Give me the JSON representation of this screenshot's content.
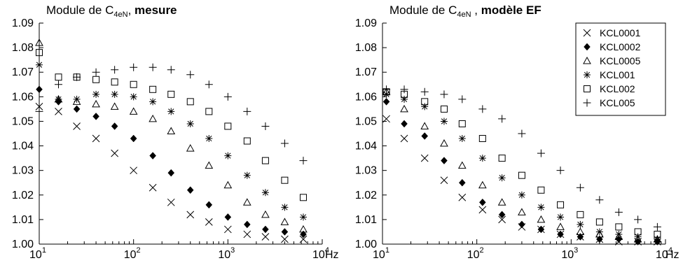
{
  "chart_data": [
    {
      "type": "scatter",
      "title_prefix": "Module de C",
      "title_sub": "4eN",
      "title_sep": ", ",
      "title_bold": "mesure",
      "xlabel": "Hz",
      "ylabel": "",
      "x_scale": "log",
      "xlim": [
        10,
        10000
      ],
      "ylim": [
        1.0,
        1.09
      ],
      "x_ticks": [
        10,
        100,
        1000,
        10000
      ],
      "x_tick_labels": [
        {
          "base": "10",
          "exp": "1"
        },
        {
          "base": "10",
          "exp": "2"
        },
        {
          "base": "10",
          "exp": "3"
        },
        {
          "base": "10",
          "exp": "4"
        }
      ],
      "y_ticks": [
        1.0,
        1.01,
        1.02,
        1.03,
        1.04,
        1.05,
        1.06,
        1.07,
        1.08,
        1.09
      ],
      "y_tick_labels": [
        "1.00",
        "1.01",
        "1.02",
        "1.03",
        "1.04",
        "1.05",
        "1.06",
        "1.07",
        "1.08",
        "1.09"
      ],
      "grid": false,
      "legend": null,
      "series": [
        {
          "name": "KCL0001",
          "marker": "x",
          "x": [
            10,
            16,
            25,
            40,
            63,
            100,
            160,
            250,
            400,
            630,
            1000,
            1600,
            2500,
            4000,
            6300
          ],
          "y": [
            1.056,
            1.054,
            1.048,
            1.043,
            1.037,
            1.03,
            1.023,
            1.017,
            1.012,
            1.009,
            1.006,
            1.004,
            1.003,
            1.002,
            1.002
          ]
        },
        {
          "name": "KCL0002",
          "marker": "diamond",
          "x": [
            10,
            16,
            25,
            40,
            63,
            100,
            160,
            250,
            400,
            630,
            1000,
            1600,
            2500,
            4000,
            6300
          ],
          "y": [
            1.063,
            1.058,
            1.055,
            1.052,
            1.048,
            1.043,
            1.036,
            1.029,
            1.022,
            1.016,
            1.011,
            1.008,
            1.006,
            1.005,
            1.004
          ]
        },
        {
          "name": "KCL0005",
          "marker": "triangle",
          "x": [
            10,
            16,
            25,
            40,
            63,
            100,
            160,
            250,
            400,
            630,
            1000,
            1600,
            2500,
            4000,
            6300
          ],
          "y": [
            1.082,
            1.059,
            1.058,
            1.057,
            1.056,
            1.054,
            1.051,
            1.046,
            1.039,
            1.032,
            1.024,
            1.017,
            1.012,
            1.009,
            1.006
          ]
        },
        {
          "name": "KCL001",
          "marker": "star",
          "x": [
            10,
            16,
            25,
            40,
            63,
            100,
            160,
            250,
            400,
            630,
            1000,
            1600,
            2500,
            4000,
            6300
          ],
          "y": [
            1.073,
            1.059,
            1.059,
            1.061,
            1.061,
            1.06,
            1.058,
            1.054,
            1.049,
            1.043,
            1.036,
            1.028,
            1.021,
            1.015,
            1.011
          ]
        },
        {
          "name": "KCL002",
          "marker": "square",
          "x": [
            10,
            16,
            25,
            40,
            63,
            100,
            160,
            250,
            400,
            630,
            1000,
            1600,
            2500,
            4000,
            6300
          ],
          "y": [
            1.078,
            1.068,
            1.068,
            1.067,
            1.066,
            1.065,
            1.063,
            1.061,
            1.058,
            1.054,
            1.048,
            1.042,
            1.034,
            1.026,
            1.019
          ]
        },
        {
          "name": "KCL005",
          "marker": "plus",
          "x": [
            10,
            16,
            25,
            40,
            63,
            100,
            160,
            250,
            400,
            630,
            1000,
            1600,
            2500,
            4000,
            6300
          ],
          "y": [
            1.054,
            1.065,
            1.068,
            1.07,
            1.071,
            1.072,
            1.072,
            1.071,
            1.069,
            1.065,
            1.06,
            1.054,
            1.048,
            1.041,
            1.034
          ]
        }
      ]
    },
    {
      "type": "scatter",
      "title_prefix": "Module de C",
      "title_sub": "4eN",
      "title_sep": " , ",
      "title_bold": "modèle EF",
      "xlabel": "Hz",
      "ylabel": "",
      "x_scale": "log",
      "xlim": [
        10,
        10000
      ],
      "ylim": [
        1.0,
        1.09
      ],
      "x_ticks": [
        10,
        100,
        1000,
        10000
      ],
      "x_tick_labels": [
        {
          "base": "10",
          "exp": "1"
        },
        {
          "base": "10",
          "exp": "2"
        },
        {
          "base": "10",
          "exp": "3"
        },
        {
          "base": "10",
          "exp": "4"
        }
      ],
      "y_ticks": [
        1.0,
        1.01,
        1.02,
        1.03,
        1.04,
        1.05,
        1.06,
        1.07,
        1.08,
        1.09
      ],
      "y_tick_labels": [
        "1.00",
        "1.01",
        "1.02",
        "1.03",
        "1.04",
        "1.05",
        "1.06",
        "1.07",
        "1.08",
        "1.09"
      ],
      "grid": false,
      "legend": "top-right",
      "series": [
        {
          "name": "KCL0001",
          "marker": "x",
          "x": [
            11,
            17,
            28,
            45,
            70,
            115,
            185,
            300,
            480,
            770,
            1250,
            2000,
            3200,
            5100,
            8200
          ],
          "y": [
            1.051,
            1.043,
            1.035,
            1.026,
            1.019,
            1.014,
            1.01,
            1.007,
            1.006,
            1.004,
            1.003,
            1.002,
            1.001,
            1.001,
            1.001
          ]
        },
        {
          "name": "KCL0002",
          "marker": "diamond",
          "x": [
            11,
            17,
            28,
            45,
            70,
            115,
            185,
            300,
            480,
            770,
            1250,
            2000,
            3200,
            5100,
            8200
          ],
          "y": [
            1.058,
            1.049,
            1.044,
            1.034,
            1.025,
            1.017,
            1.012,
            1.008,
            1.006,
            1.004,
            1.003,
            1.002,
            1.002,
            1.001,
            1.001
          ]
        },
        {
          "name": "KCL0005",
          "marker": "triangle",
          "x": [
            11,
            17,
            28,
            45,
            70,
            115,
            185,
            300,
            480,
            770,
            1250,
            2000,
            3200,
            5100,
            8200
          ],
          "y": [
            1.062,
            1.055,
            1.048,
            1.041,
            1.032,
            1.024,
            1.017,
            1.013,
            1.01,
            1.007,
            1.005,
            1.004,
            1.003,
            1.002,
            1.002
          ]
        },
        {
          "name": "KCL001",
          "marker": "star",
          "x": [
            11,
            17,
            28,
            45,
            70,
            115,
            185,
            300,
            480,
            770,
            1250,
            2000,
            3200,
            5100,
            8200
          ],
          "y": [
            1.061,
            1.059,
            1.056,
            1.05,
            1.043,
            1.035,
            1.027,
            1.02,
            1.015,
            1.011,
            1.008,
            1.005,
            1.004,
            1.003,
            1.002
          ]
        },
        {
          "name": "KCL002",
          "marker": "square",
          "x": [
            11,
            17,
            28,
            45,
            70,
            115,
            185,
            300,
            480,
            770,
            1250,
            2000,
            3200,
            5100,
            8200
          ],
          "y": [
            1.062,
            1.061,
            1.058,
            1.055,
            1.049,
            1.043,
            1.035,
            1.028,
            1.022,
            1.016,
            1.012,
            1.009,
            1.007,
            1.005,
            1.004
          ]
        },
        {
          "name": "KCL005",
          "marker": "plus",
          "x": [
            11,
            17,
            28,
            45,
            70,
            115,
            185,
            300,
            480,
            770,
            1250,
            2000,
            3200,
            5100,
            8200
          ],
          "y": [
            1.063,
            1.063,
            1.062,
            1.061,
            1.059,
            1.055,
            1.051,
            1.045,
            1.037,
            1.03,
            1.023,
            1.018,
            1.013,
            1.01,
            1.007
          ]
        }
      ]
    }
  ]
}
